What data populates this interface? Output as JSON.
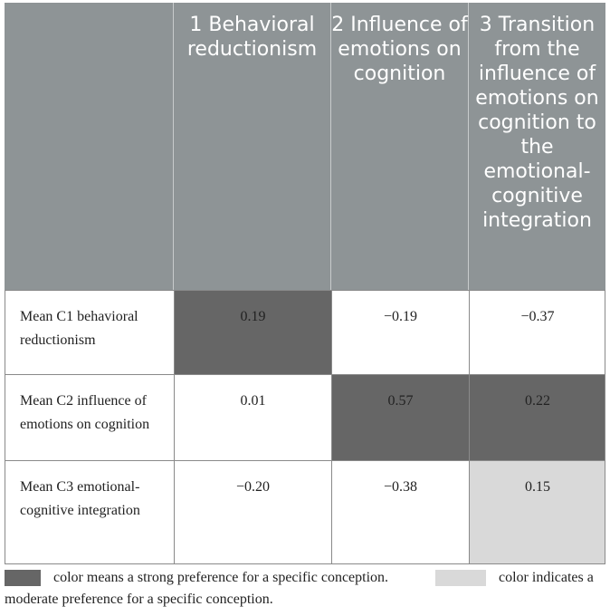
{
  "columns": [
    {
      "label": "1 Behavioral reductionism"
    },
    {
      "label": "2 Influence of emotions on cognition"
    },
    {
      "label": "3 Transition from the influence of emotions on cognition to the emotional-cognitive integration"
    }
  ],
  "rows": [
    {
      "label": "Mean C1 behavioral reductionism",
      "values": [
        "0.19",
        "−0.19",
        "−0.37"
      ]
    },
    {
      "label": "Mean C2 influence of emotions on cognition",
      "values": [
        "0.01",
        "0.57",
        "0.22"
      ]
    },
    {
      "label": "Mean C3 emotional-cognitive integration",
      "values": [
        "−0.20",
        "−0.38",
        "0.15"
      ]
    }
  ],
  "legend": {
    "strong_text": "color means a strong preference for a specific conception.",
    "moderate_text_1": "color indicates a",
    "moderate_text_2": "moderate preference for a specific conception."
  },
  "colors": {
    "header_bg": "#8e9496",
    "strong": "#666666",
    "moderate": "#d9d9d9"
  }
}
